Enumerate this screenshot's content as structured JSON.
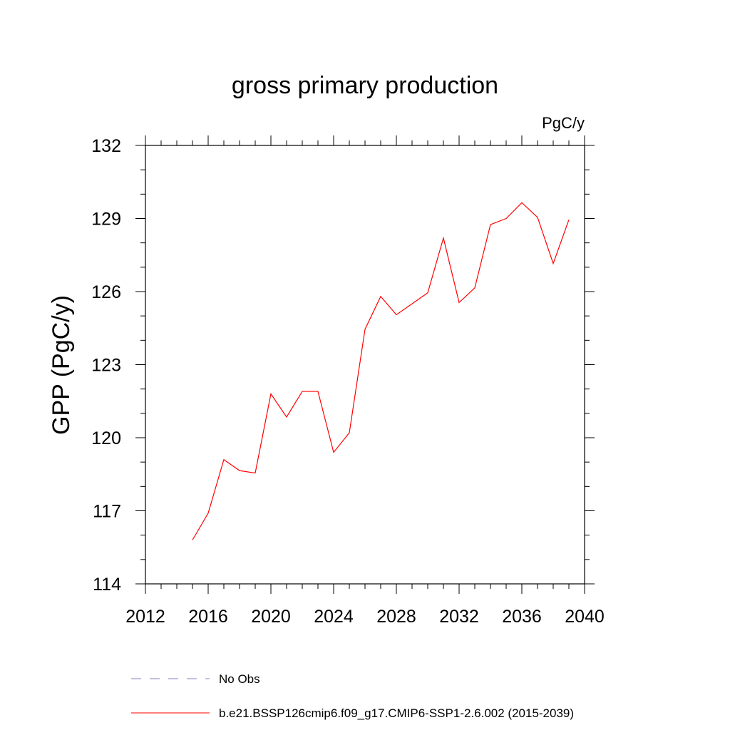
{
  "chart_data": {
    "type": "line",
    "title": "gross primary production",
    "units_label": "PgC/y",
    "ylabel": "GPP  (PgC/y)",
    "xlim": [
      2012,
      2040
    ],
    "ylim": [
      114,
      132
    ],
    "x_ticks": [
      "2012",
      "2016",
      "2020",
      "2024",
      "2028",
      "2032",
      "2036",
      "2040"
    ],
    "y_ticks": [
      "114",
      "117",
      "120",
      "123",
      "126",
      "129",
      "132"
    ],
    "series": [
      {
        "name": "b.e21.BSSP126cmip6.f09_g17.CMIP6-SSP1-2.6.002 (2015-2039)",
        "color": "#ff0000",
        "style": "solid",
        "x": [
          2015,
          2016,
          2017,
          2018,
          2019,
          2020,
          2021,
          2022,
          2023,
          2024,
          2025,
          2026,
          2027,
          2028,
          2029,
          2030,
          2031,
          2032,
          2033,
          2034,
          2035,
          2036,
          2037,
          2038,
          2039
        ],
        "y": [
          115.8,
          116.9,
          119.1,
          118.65,
          118.55,
          121.8,
          120.85,
          121.9,
          121.9,
          119.4,
          120.2,
          124.45,
          125.8,
          125.05,
          125.5,
          125.95,
          128.2,
          125.55,
          126.15,
          128.75,
          129.0,
          129.65,
          129.05,
          127.15,
          128.95
        ]
      }
    ],
    "legend": [
      {
        "label": "No Obs",
        "color": "#8080c0",
        "style": "dashed"
      },
      {
        "label": "b.e21.BSSP126cmip6.f09_g17.CMIP6-SSP1-2.6.002 (2015-2039)",
        "color": "#ff0000",
        "style": "solid"
      }
    ],
    "grid": false,
    "legend_position": "bottom"
  }
}
